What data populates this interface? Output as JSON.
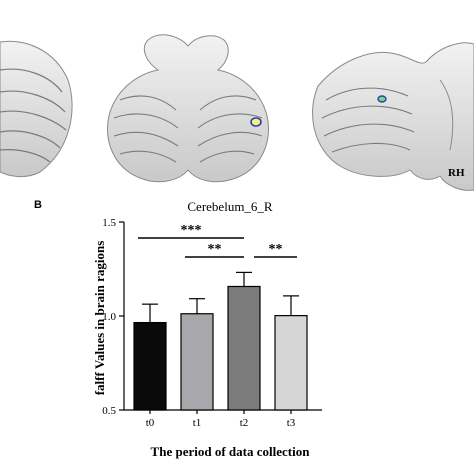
{
  "panel_a": {
    "side_label": "RH"
  },
  "panel_b": {
    "panel_label": "B"
  },
  "chart_data": {
    "type": "bar",
    "title": "Cerebelum_6_R",
    "xlabel": "The period of data collection",
    "ylabel": "falff  Values in brain ragions",
    "categories": [
      "t0",
      "t1",
      "t2",
      "t3"
    ],
    "values": [
      0.965,
      1.012,
      1.157,
      1.002
    ],
    "errors": [
      0.098,
      0.08,
      0.075,
      0.105
    ],
    "bar_colors": [
      "#0a0a0a",
      "#a8a8ac",
      "#7c7c7c",
      "#d6d6d6"
    ],
    "ylim": [
      0.5,
      1.5
    ],
    "yticks": [
      "0.5",
      "1.0",
      "1.5"
    ],
    "grid": false,
    "significance": [
      {
        "from": "t0",
        "to": "t2",
        "label": "***"
      },
      {
        "from": "t1",
        "to": "t2",
        "label": "**"
      },
      {
        "from": "t2",
        "to": "t3",
        "label": "**"
      }
    ]
  }
}
